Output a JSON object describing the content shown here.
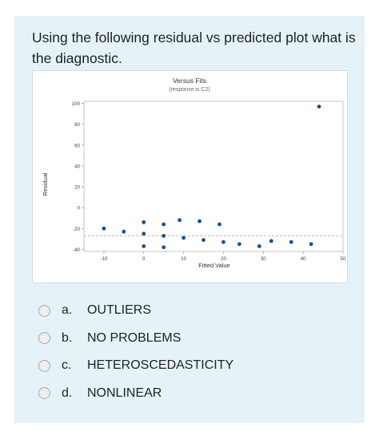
{
  "question": {
    "text": "Using the following residual vs predicted plot what is the diagnostic."
  },
  "chart_data": {
    "type": "scatter",
    "title": "Versus Fits",
    "subtitle": "(response is C2)",
    "xlabel": "Fitted Value",
    "ylabel": "Residual",
    "xlim": [
      -15,
      50
    ],
    "ylim": [
      -42,
      102
    ],
    "xticks": [
      -10,
      0,
      10,
      20,
      30,
      40,
      50
    ],
    "yticks": [
      -40,
      -20,
      0,
      20,
      40,
      60,
      80,
      100
    ],
    "reference_line_y": -27,
    "points": [
      {
        "x": -10,
        "y": -20
      },
      {
        "x": -5,
        "y": -23
      },
      {
        "x": 0,
        "y": -14
      },
      {
        "x": 0,
        "y": -25
      },
      {
        "x": 0,
        "y": -37
      },
      {
        "x": 5,
        "y": -16
      },
      {
        "x": 5,
        "y": -27
      },
      {
        "x": 5,
        "y": -38
      },
      {
        "x": 9,
        "y": -12
      },
      {
        "x": 10,
        "y": -29
      },
      {
        "x": 14,
        "y": -13
      },
      {
        "x": 15,
        "y": -31
      },
      {
        "x": 19,
        "y": -16
      },
      {
        "x": 20,
        "y": -33
      },
      {
        "x": 24,
        "y": -35
      },
      {
        "x": 29,
        "y": -37
      },
      {
        "x": 32,
        "y": -32
      },
      {
        "x": 37,
        "y": -33
      },
      {
        "x": 42,
        "y": -35
      },
      {
        "x": 44,
        "y": 97
      }
    ],
    "point_color": "#1a4f8b",
    "grid": false,
    "legend": "none"
  },
  "options": [
    {
      "letter": "a.",
      "text": "OUTLIERS"
    },
    {
      "letter": "b.",
      "text": "NO PROBLEMS"
    },
    {
      "letter": "c.",
      "text": "HETEROSCEDASTICITY"
    },
    {
      "letter": "d.",
      "text": "NONLINEAR"
    }
  ]
}
